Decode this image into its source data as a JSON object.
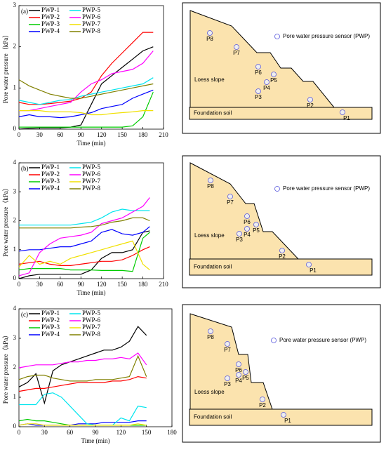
{
  "chart_data": [
    {
      "type": "line",
      "panel_label": "(a)",
      "x_label": "Time (min)",
      "y_label": "Pore water pressure（kPa）",
      "legend": "upper left",
      "x": [
        0,
        15,
        30,
        45,
        60,
        75,
        90,
        105,
        120,
        135,
        150,
        165,
        180,
        195
      ],
      "xlim": [
        0,
        210
      ],
      "xticks": [
        0,
        30,
        60,
        90,
        120,
        150,
        180,
        210
      ],
      "ylim": [
        0,
        3
      ],
      "yticks": [
        0,
        1,
        2,
        3
      ],
      "series": [
        {
          "name": "PWP-1",
          "color": "#000000",
          "values": [
            0,
            0.02,
            0.03,
            0.03,
            0.03,
            0.05,
            0.1,
            0.6,
            1.1,
            1.3,
            1.5,
            1.7,
            1.9,
            2.0
          ]
        },
        {
          "name": "PWP-2",
          "color": "#ff0000",
          "values": [
            0.65,
            0.6,
            0.6,
            0.62,
            0.65,
            0.68,
            0.75,
            0.9,
            1.3,
            1.6,
            1.85,
            2.1,
            2.35,
            2.35
          ]
        },
        {
          "name": "PWP-3",
          "color": "#00cc00",
          "values": [
            0.05,
            0.05,
            0.05,
            0.05,
            0.05,
            0.05,
            0.05,
            0.05,
            0.05,
            0.05,
            0.05,
            0.08,
            0.3,
            0.9
          ]
        },
        {
          "name": "PWP-4",
          "color": "#0000ff",
          "values": [
            0.3,
            0.35,
            0.3,
            0.3,
            0.28,
            0.3,
            0.35,
            0.4,
            0.5,
            0.55,
            0.6,
            0.75,
            0.85,
            0.95
          ]
        },
        {
          "name": "PWP-5",
          "color": "#00e5ee",
          "values": [
            0.7,
            0.65,
            0.6,
            0.65,
            0.7,
            0.72,
            0.8,
            0.85,
            0.9,
            0.95,
            1.0,
            1.05,
            1.1,
            1.25
          ]
        },
        {
          "name": "PWP-6",
          "color": "#ff00ff",
          "values": [
            0.45,
            0.45,
            0.5,
            0.55,
            0.6,
            0.65,
            0.9,
            1.1,
            1.2,
            1.35,
            1.4,
            1.45,
            1.6,
            1.9
          ]
        },
        {
          "name": "PWP-7",
          "color": "#f0e000",
          "values": [
            0.45,
            0.45,
            0.45,
            0.42,
            0.42,
            0.42,
            0.4,
            0.35,
            0.35,
            0.38,
            0.4,
            0.42,
            0.45,
            0.45
          ]
        },
        {
          "name": "PWP-8",
          "color": "#808000",
          "values": [
            1.2,
            1.05,
            0.95,
            0.85,
            0.8,
            0.75,
            0.75,
            0.8,
            0.85,
            0.9,
            0.95,
            1.0,
            1.05,
            1.1
          ]
        }
      ]
    },
    {
      "type": "line",
      "panel_label": "(b)",
      "x_label": "Time (min)",
      "y_label": "Pore water pressure（kPa）",
      "legend": "upper left",
      "x": [
        0,
        15,
        30,
        45,
        60,
        75,
        90,
        105,
        120,
        135,
        150,
        165,
        180,
        190
      ],
      "xlim": [
        0,
        210
      ],
      "xticks": [
        0,
        30,
        60,
        90,
        120,
        150,
        180,
        210
      ],
      "ylim": [
        0,
        4
      ],
      "yticks": [
        0,
        1,
        2,
        3,
        4
      ],
      "series": [
        {
          "name": "PWP-1",
          "color": "#000000",
          "values": [
            0,
            0.1,
            0.15,
            0.15,
            0.15,
            0.15,
            0.15,
            0.3,
            0.7,
            0.9,
            0.9,
            1.0,
            1.6,
            1.65
          ]
        },
        {
          "name": "PWP-2",
          "color": "#ff0000",
          "values": [
            0.5,
            0.55,
            0.6,
            0.5,
            0.45,
            0.45,
            0.5,
            0.55,
            0.6,
            0.6,
            0.65,
            0.8,
            1.0,
            1.1
          ]
        },
        {
          "name": "PWP-3",
          "color": "#00cc00",
          "values": [
            0.3,
            0.35,
            0.35,
            0.35,
            0.35,
            0.3,
            0.3,
            0.3,
            0.28,
            0.28,
            0.28,
            0.25,
            1.4,
            1.6
          ]
        },
        {
          "name": "PWP-4",
          "color": "#0000ff",
          "values": [
            0.95,
            1.0,
            1.0,
            1.05,
            1.1,
            1.1,
            1.2,
            1.3,
            1.6,
            1.7,
            1.55,
            1.5,
            1.6,
            1.8
          ]
        },
        {
          "name": "PWP-5",
          "color": "#00e5ee",
          "values": [
            1.85,
            1.85,
            1.85,
            1.85,
            1.85,
            1.85,
            1.9,
            1.95,
            2.1,
            2.3,
            2.4,
            2.35,
            2.35,
            2.35
          ]
        },
        {
          "name": "PWP-6",
          "color": "#ff00ff",
          "values": [
            0.1,
            0.2,
            0.9,
            1.2,
            1.4,
            1.45,
            1.5,
            1.6,
            1.9,
            2.0,
            2.1,
            2.3,
            2.5,
            2.8
          ]
        },
        {
          "name": "PWP-7",
          "color": "#f0e000",
          "values": [
            0.4,
            0.8,
            0.5,
            0.6,
            0.5,
            0.7,
            0.8,
            0.9,
            1.0,
            1.1,
            1.2,
            1.3,
            0.5,
            0.3
          ]
        },
        {
          "name": "PWP-8",
          "color": "#808000",
          "values": [
            1.75,
            1.75,
            1.75,
            1.75,
            1.75,
            1.75,
            1.78,
            1.8,
            1.85,
            1.95,
            2.0,
            2.1,
            2.1,
            2.0
          ]
        }
      ]
    },
    {
      "type": "line",
      "panel_label": "(c)",
      "x_label": "Time (min)",
      "y_label": "Pore water pressure（kPa）",
      "legend": "upper left",
      "x": [
        0,
        10,
        20,
        30,
        40,
        50,
        60,
        70,
        80,
        90,
        100,
        110,
        120,
        130,
        140,
        150
      ],
      "xlim": [
        0,
        180
      ],
      "xticks": [
        0,
        30,
        60,
        90,
        120,
        150,
        180
      ],
      "ylim": [
        0,
        4
      ],
      "yticks": [
        0,
        1,
        2,
        3,
        4
      ],
      "series": [
        {
          "name": "PWP-1",
          "color": "#000000",
          "values": [
            1.35,
            1.5,
            1.8,
            0.8,
            1.9,
            2.1,
            2.2,
            2.3,
            2.4,
            2.5,
            2.6,
            2.6,
            2.7,
            2.9,
            3.4,
            3.1
          ]
        },
        {
          "name": "PWP-2",
          "color": "#ff0000",
          "values": [
            1.2,
            1.25,
            1.3,
            1.3,
            1.35,
            1.4,
            1.45,
            1.5,
            1.5,
            1.5,
            1.5,
            1.55,
            1.55,
            1.6,
            1.7,
            1.65
          ]
        },
        {
          "name": "PWP-3",
          "color": "#00cc00",
          "values": [
            0.2,
            0.25,
            0.2,
            0.2,
            0.15,
            0.1,
            0.05,
            0.05,
            0.05,
            0.05,
            0.05,
            0.05,
            0.05,
            0.05,
            0.05,
            0.05
          ]
        },
        {
          "name": "PWP-4",
          "color": "#0000ff",
          "values": [
            0.05,
            0.1,
            0.05,
            0.05,
            0.05,
            0.05,
            0.05,
            0.1,
            0.1,
            0.1,
            0.15,
            0.15,
            0.15,
            0.15,
            0.2,
            0.2
          ]
        },
        {
          "name": "PWP-5",
          "color": "#00e5ee",
          "values": [
            0.75,
            0.75,
            0.75,
            1.1,
            1.15,
            1.0,
            0.7,
            0.4,
            0.1,
            0.05,
            0.05,
            0.05,
            0.3,
            0.2,
            0.7,
            0.65
          ]
        },
        {
          "name": "PWP-6",
          "color": "#ff00ff",
          "values": [
            2.0,
            2.05,
            2.1,
            2.1,
            2.1,
            2.15,
            2.2,
            2.2,
            2.25,
            2.25,
            2.3,
            2.3,
            2.35,
            2.3,
            2.5,
            2.1
          ]
        },
        {
          "name": "PWP-7",
          "color": "#f0e000",
          "values": [
            0.05,
            0.1,
            0.1,
            0.05,
            0.05,
            0.05,
            0.05,
            0.05,
            0.05,
            0.05,
            0.05,
            0.05,
            0.05,
            0.05,
            0.1,
            0.05
          ]
        },
        {
          "name": "PWP-8",
          "color": "#808000",
          "values": [
            1.6,
            1.7,
            1.75,
            1.75,
            1.65,
            1.6,
            1.55,
            1.55,
            1.55,
            1.6,
            1.6,
            1.6,
            1.65,
            1.7,
            2.4,
            1.7
          ]
        }
      ]
    }
  ],
  "diagrams": [
    {
      "legend": "Pore water pressure sensor (PWP)",
      "slope_label": "Loess slope",
      "foundation_label": "Foundation soil",
      "sensors": [
        "P1",
        "P2",
        "P3",
        "P4",
        "P5",
        "P6",
        "P7",
        "P8"
      ]
    },
    {
      "legend": "Pore water pressure sensor (PWP)",
      "slope_label": "Loess slope",
      "foundation_label": "Foundation soil",
      "sensors": [
        "P1",
        "P2",
        "P3",
        "P4",
        "P5",
        "P6",
        "P7",
        "P8"
      ]
    },
    {
      "legend": "Pore water pressure sensor (PWP)",
      "slope_label": "Loess slope",
      "foundation_label": "Foundation soil",
      "sensors": [
        "P1",
        "P2",
        "P3",
        "P4",
        "P5",
        "P6",
        "P7",
        "P8"
      ]
    }
  ]
}
